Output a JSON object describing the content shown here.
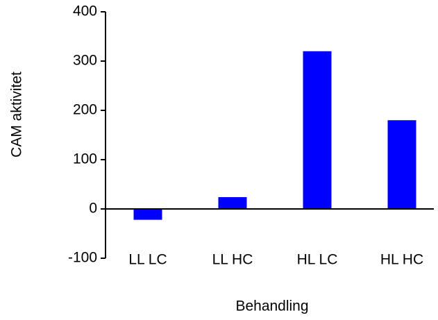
{
  "chart_data": {
    "type": "bar",
    "categories": [
      "LL LC",
      "LL HC",
      "HL LC",
      "HL HC"
    ],
    "values": [
      -22,
      24,
      320,
      180
    ],
    "color": "#0000ff",
    "ylim": [
      -100,
      400
    ],
    "yticks": [
      -100,
      0,
      100,
      200,
      300,
      400
    ],
    "y_label": "CAM aktivitet",
    "x_label": "Behandling",
    "grid": false
  }
}
